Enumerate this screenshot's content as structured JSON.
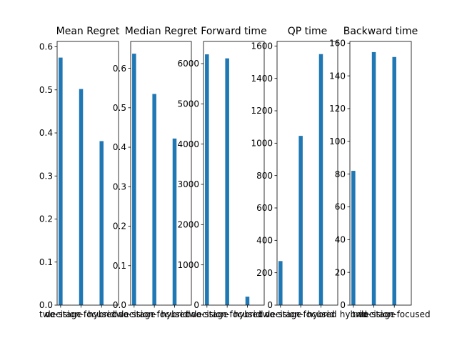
{
  "chart_data": [
    {
      "type": "bar",
      "title": "Mean Regret",
      "categories": [
        "two-stage",
        "decision-focused",
        "hybrid"
      ],
      "values": [
        0.575,
        0.502,
        0.381
      ],
      "ylim": [
        0,
        0.6125
      ],
      "yticks": [
        0.0,
        0.1,
        0.2,
        0.3,
        0.4,
        0.5,
        0.6
      ],
      "ytick_labels": [
        "0.0",
        "0.1",
        "0.2",
        "0.3",
        "0.4",
        "0.5",
        "0.6"
      ],
      "color": "#1f77b4"
    },
    {
      "type": "bar",
      "title": "Median Regret",
      "categories": [
        "two-stage",
        "decision-focused",
        "hybrid"
      ],
      "values": [
        0.637,
        0.535,
        0.422
      ],
      "ylim": [
        0,
        0.668
      ],
      "yticks": [
        0.0,
        0.1,
        0.2,
        0.3,
        0.4,
        0.5,
        0.6
      ],
      "ytick_labels": [
        "0.0",
        "0.1",
        "0.2",
        "0.3",
        "0.4",
        "0.5",
        "0.6"
      ],
      "color": "#1f77b4"
    },
    {
      "type": "bar",
      "title": "Forward time",
      "categories": [
        "two-stage",
        "decision-focused",
        "hybrid"
      ],
      "values": [
        6230,
        6130,
        210
      ],
      "ylim": [
        0,
        6550
      ],
      "yticks": [
        0,
        1000,
        2000,
        3000,
        4000,
        5000,
        6000
      ],
      "ytick_labels": [
        "0",
        "1000",
        "2000",
        "3000",
        "4000",
        "5000",
        "6000"
      ],
      "color": "#1f77b4"
    },
    {
      "type": "bar",
      "title": "QP time",
      "categories": [
        "two-stage",
        "decision-focused",
        "hybrid"
      ],
      "values": [
        272,
        1045,
        1550
      ],
      "ylim": [
        0,
        1628
      ],
      "yticks": [
        0,
        200,
        400,
        600,
        800,
        1000,
        1200,
        1400,
        1600
      ],
      "ytick_labels": [
        "0",
        "200",
        "400",
        "600",
        "800",
        "1000",
        "1200",
        "1400",
        "1600"
      ],
      "color": "#1f77b4"
    },
    {
      "type": "bar",
      "title": "Backward time",
      "categories": [
        "hybrid",
        "two-stage",
        "decision-focused"
      ],
      "values": [
        82,
        154.5,
        151.5
      ],
      "ylim": [
        0,
        161
      ],
      "yticks": [
        0,
        20,
        40,
        60,
        80,
        100,
        120,
        140,
        160
      ],
      "ytick_labels": [
        "0",
        "20",
        "40",
        "60",
        "80",
        "100",
        "120",
        "140",
        "160"
      ],
      "color": "#1f77b4"
    }
  ]
}
